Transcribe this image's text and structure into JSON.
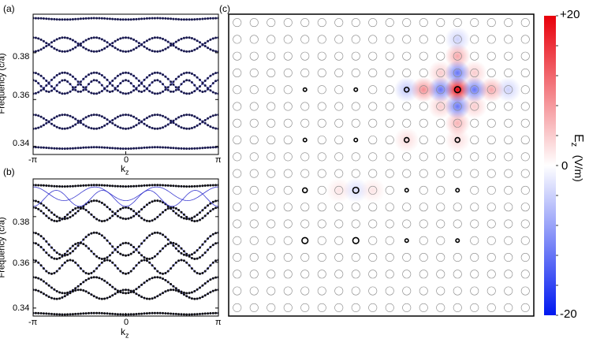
{
  "panels": {
    "a": {
      "label": "(a)",
      "ylabel": "Frequency (c/a)",
      "xlabel_main": "k",
      "xlabel_sub": "z",
      "xticks": [
        "-π",
        "0",
        "π"
      ],
      "yticks": [
        "0.34",
        "0.36",
        "0.38"
      ],
      "ylim": [
        0.3365,
        0.3965
      ]
    },
    "b": {
      "label": "(b)",
      "ylabel": "Frequency (c/a)",
      "xlabel_main": "k",
      "xlabel_sub": "z",
      "xticks": [
        "-π",
        "0",
        "π"
      ],
      "yticks": [
        "0.34",
        "0.36",
        "0.38"
      ],
      "ylim": [
        0.3365,
        0.3965
      ]
    },
    "c": {
      "label": "(c)",
      "colorbar_label_main": "E",
      "colorbar_label_sub": "z",
      "colorbar_unit": "(V/m)",
      "colorbar_ticks": [
        "+20",
        "0",
        "-20"
      ],
      "colorbar_range": [
        -20,
        20
      ]
    }
  },
  "chart_data": [
    {
      "type": "line",
      "panel": "a",
      "x_range": [
        "-π",
        "π"
      ],
      "flat_bands": [
        0.3393,
        0.3945
      ],
      "band_groups": [
        {
          "center": 0.3835,
          "amplitude": 0.003,
          "periods": 3
        },
        {
          "center": 0.3835,
          "amplitude": 0.003,
          "periods": 3,
          "phase_shift": true
        },
        {
          "center": 0.367,
          "amplitude": 0.0045,
          "periods": 3
        },
        {
          "center": 0.367,
          "amplitude": 0.0045,
          "periods": 3,
          "phase_shift": true
        },
        {
          "center": 0.3658,
          "amplitude": 0.0025,
          "periods": 6
        },
        {
          "center": 0.3505,
          "amplitude": 0.003,
          "periods": 3
        },
        {
          "center": 0.3505,
          "amplitude": 0.003,
          "periods": 3,
          "phase_shift": true
        }
      ],
      "series_colors": {
        "dots": "#1a1a4a",
        "line": "#3a3ad0"
      }
    },
    {
      "type": "scatter",
      "panel": "b",
      "x_range": [
        "-π",
        "π"
      ],
      "flat_bands": [
        0.3375,
        0.3935
      ],
      "band_groups": [
        {
          "center": 0.383,
          "amplitude": 0.004,
          "periods": 3
        },
        {
          "center": 0.381,
          "amplitude": 0.003,
          "periods": 4
        },
        {
          "center": 0.368,
          "amplitude": 0.005,
          "periods": 3
        },
        {
          "center": 0.365,
          "amplitude": 0.0035,
          "periods": 4
        },
        {
          "center": 0.358,
          "amplitude": 0.003,
          "periods": 5
        },
        {
          "center": 0.35,
          "amplitude": 0.0035,
          "periods": 3
        },
        {
          "center": 0.346,
          "amplitude": 0.002,
          "periods": 4
        }
      ],
      "series_colors": {
        "dots": "#111111",
        "line": "#3a3ad0"
      }
    },
    {
      "type": "heatmap",
      "panel": "c",
      "grid": {
        "cols": 18,
        "rows": 18
      },
      "defect_rods": [
        {
          "col": 4,
          "row": 4,
          "size": "small"
        },
        {
          "col": 7,
          "row": 4,
          "size": "small"
        },
        {
          "col": 10,
          "row": 4,
          "size": "medium"
        },
        {
          "col": 13,
          "row": 4,
          "size": "large"
        },
        {
          "col": 4,
          "row": 7,
          "size": "small"
        },
        {
          "col": 7,
          "row": 7,
          "size": "small"
        },
        {
          "col": 10,
          "row": 7,
          "size": "medium"
        },
        {
          "col": 13,
          "row": 7,
          "size": "medium"
        },
        {
          "col": 4,
          "row": 10,
          "size": "medium"
        },
        {
          "col": 7,
          "row": 10,
          "size": "large"
        },
        {
          "col": 10,
          "row": 10,
          "size": "small"
        },
        {
          "col": 13,
          "row": 10,
          "size": "small"
        },
        {
          "col": 4,
          "row": 13,
          "size": "large"
        },
        {
          "col": 7,
          "row": 13,
          "size": "large"
        },
        {
          "col": 10,
          "row": 13,
          "size": "small"
        },
        {
          "col": 13,
          "row": 13,
          "size": "small"
        }
      ],
      "field_blobs": [
        {
          "col": 13,
          "row": 4,
          "value": 20
        },
        {
          "col": 12,
          "row": 4,
          "value": -12
        },
        {
          "col": 14,
          "row": 4,
          "value": -12
        },
        {
          "col": 13,
          "row": 3,
          "value": -12
        },
        {
          "col": 13,
          "row": 5,
          "value": -12
        },
        {
          "col": 11,
          "row": 4,
          "value": 9
        },
        {
          "col": 15,
          "row": 4,
          "value": 7
        },
        {
          "col": 13,
          "row": 2,
          "value": 7
        },
        {
          "col": 13,
          "row": 6,
          "value": 6
        },
        {
          "col": 10,
          "row": 4,
          "value": -5
        },
        {
          "col": 16,
          "row": 4,
          "value": -4
        },
        {
          "col": 13,
          "row": 1,
          "value": -4
        },
        {
          "col": 13,
          "row": 7,
          "value": 3
        },
        {
          "col": 12,
          "row": 3,
          "value": 4
        },
        {
          "col": 14,
          "row": 3,
          "value": 4
        },
        {
          "col": 12,
          "row": 5,
          "value": 4
        },
        {
          "col": 14,
          "row": 5,
          "value": 4
        },
        {
          "col": 10,
          "row": 7,
          "value": 3
        },
        {
          "col": 7,
          "row": 10,
          "value": -3
        },
        {
          "col": 6,
          "row": 10,
          "value": 2
        },
        {
          "col": 8,
          "row": 10,
          "value": 2
        }
      ],
      "colors": {
        "positive": "#e8000b",
        "negative": "#0018f0",
        "zero": "#ffffff"
      }
    }
  ]
}
